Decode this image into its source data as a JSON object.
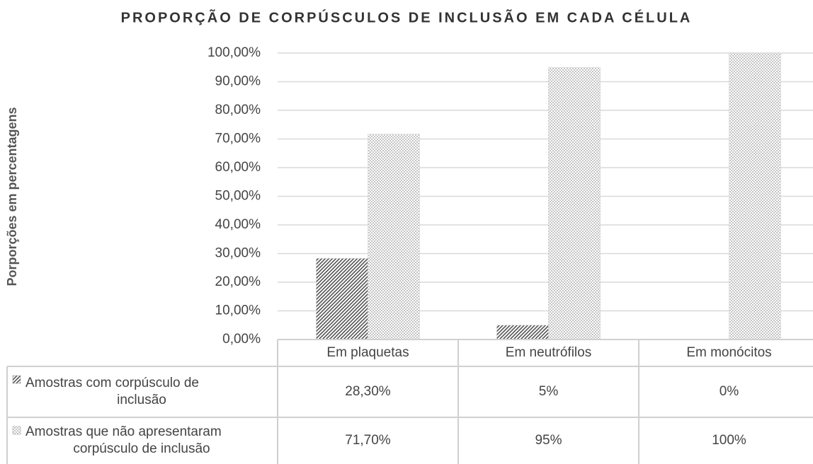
{
  "chart_data": {
    "type": "bar",
    "title": "PROPORÇÃO DE CORPÚSCULOS DE INCLUSÃO EM CADA CÉLULA",
    "y_label": "Porporções em percentagens",
    "categories": [
      "Em plaquetas",
      "Em neutrófilos",
      "Em monócitos"
    ],
    "series": [
      {
        "name": "Amostras com corpúsculo de inclusão",
        "color": "#555555",
        "values": [
          28.3,
          5,
          0
        ],
        "value_labels": [
          "28,30%",
          "5%",
          "0%"
        ]
      },
      {
        "name": "Amostras que não apresentaram corpúsculo de inclusão",
        "color": "#999999",
        "values": [
          71.7,
          95,
          100
        ],
        "value_labels": [
          "71,70%",
          "95%",
          "100%"
        ]
      }
    ],
    "ylim": [
      0,
      100
    ],
    "yticks": [
      {
        "value": 0,
        "label": "0,00%"
      },
      {
        "value": 10,
        "label": "10,00%"
      },
      {
        "value": 20,
        "label": "20,00%"
      },
      {
        "value": 30,
        "label": "30,00%"
      },
      {
        "value": 40,
        "label": "40,00%"
      },
      {
        "value": 50,
        "label": "50,00%"
      },
      {
        "value": 60,
        "label": "60,00%"
      },
      {
        "value": 70,
        "label": "70,00%"
      },
      {
        "value": 80,
        "label": "80,00%"
      },
      {
        "value": 90,
        "label": "90,00%"
      },
      {
        "value": 100,
        "label": "100,00%"
      }
    ],
    "grid": true
  }
}
